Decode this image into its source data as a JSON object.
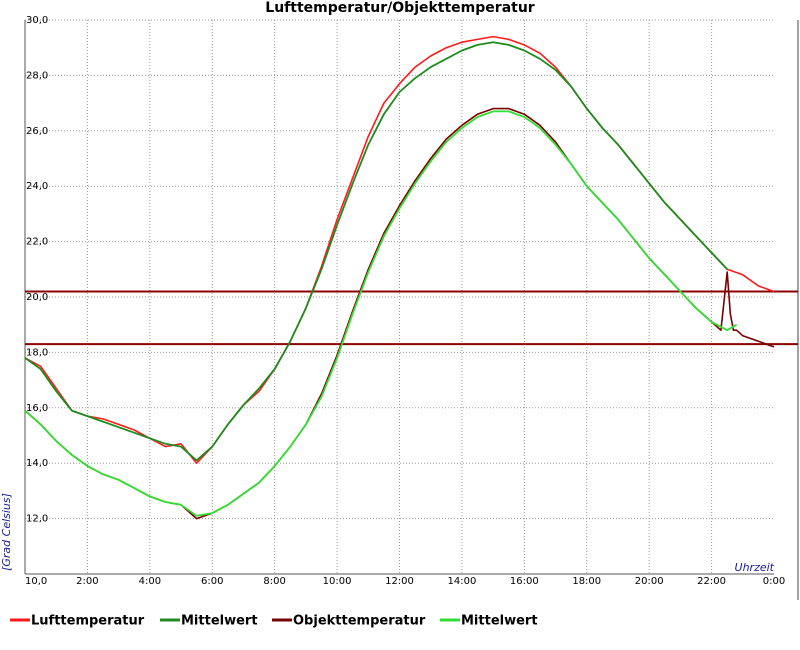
{
  "chart_data": {
    "type": "line",
    "title": "Lufttemperatur/Objekttemperatur",
    "xlabel": "Uhrzeit",
    "ylabel": "[Grad Celsius]",
    "xlim": [
      0,
      24
    ],
    "ylim": [
      10,
      30
    ],
    "x_ticks": [
      {
        "x": 0,
        "label": "10,0"
      },
      {
        "x": 2,
        "label": "2:00"
      },
      {
        "x": 4,
        "label": "4:00"
      },
      {
        "x": 6,
        "label": "6:00"
      },
      {
        "x": 8,
        "label": "8:00"
      },
      {
        "x": 10,
        "label": "10:00"
      },
      {
        "x": 12,
        "label": "12:00"
      },
      {
        "x": 14,
        "label": "14:00"
      },
      {
        "x": 16,
        "label": "16:00"
      },
      {
        "x": 18,
        "label": "18:00"
      },
      {
        "x": 20,
        "label": "20:00"
      },
      {
        "x": 22,
        "label": "22:00"
      },
      {
        "x": 24,
        "label": "0:00"
      }
    ],
    "y_ticks": [
      {
        "y": 12,
        "label": "12,0"
      },
      {
        "y": 14,
        "label": "14,0"
      },
      {
        "y": 16,
        "label": "16,0"
      },
      {
        "y": 18,
        "label": "18,0"
      },
      {
        "y": 20,
        "label": "20,0"
      },
      {
        "y": 22,
        "label": "22,0"
      },
      {
        "y": 24,
        "label": "24,0"
      },
      {
        "y": 26,
        "label": "26,0"
      },
      {
        "y": 28,
        "label": "28,0"
      },
      {
        "y": 30,
        "label": "30,0"
      }
    ],
    "grid": true,
    "legend_position": "bottom",
    "reference_lines": [
      {
        "y": 20.2,
        "color": "#8b0000"
      },
      {
        "y": 18.3,
        "color": "#8b0000"
      }
    ],
    "series": [
      {
        "name": "Lufttemperatur",
        "color": "#ff1a1a",
        "x": [
          0,
          0.5,
          1,
          1.5,
          2,
          2.5,
          3,
          3.5,
          4,
          4.5,
          5,
          5.5,
          6,
          6.5,
          7,
          7.5,
          8,
          8.5,
          9,
          9.5,
          10,
          10.5,
          11,
          11.5,
          12,
          12.5,
          13,
          13.5,
          14,
          14.5,
          15,
          15.5,
          16,
          16.5,
          17,
          17.5,
          18,
          18.5,
          19,
          19.5,
          20,
          20.5,
          21,
          21.5,
          22,
          22.5,
          23,
          23.5,
          24
        ],
        "y": [
          17.8,
          17.5,
          16.7,
          15.9,
          15.7,
          15.6,
          15.4,
          15.2,
          14.9,
          14.6,
          14.7,
          14.0,
          14.6,
          15.4,
          16.1,
          16.6,
          17.4,
          18.4,
          19.6,
          21.1,
          22.8,
          24.3,
          25.8,
          27.0,
          27.7,
          28.3,
          28.7,
          29.0,
          29.2,
          29.3,
          29.4,
          29.3,
          29.1,
          28.8,
          28.3,
          27.6,
          26.8,
          26.1,
          25.5,
          24.8,
          24.1,
          23.4,
          22.8,
          22.2,
          21.6,
          21.0,
          20.8,
          20.4,
          20.2
        ]
      },
      {
        "name": "Mittelwert",
        "color": "#1f8b1f",
        "x": [
          0,
          0.5,
          1,
          1.5,
          2,
          2.5,
          3,
          3.5,
          4,
          4.5,
          5,
          5.5,
          6,
          6.5,
          7,
          7.5,
          8,
          8.5,
          9,
          9.5,
          10,
          10.5,
          11,
          11.5,
          12,
          12.5,
          13,
          13.5,
          14,
          14.5,
          15,
          15.5,
          16,
          16.5,
          17,
          17.5,
          18,
          18.5,
          19,
          19.5,
          20,
          20.5,
          21,
          21.5,
          22,
          22.5
        ],
        "y": [
          17.8,
          17.4,
          16.6,
          15.9,
          15.7,
          15.5,
          15.3,
          15.1,
          14.9,
          14.7,
          14.6,
          14.1,
          14.6,
          15.4,
          16.1,
          16.7,
          17.4,
          18.4,
          19.6,
          21.0,
          22.6,
          24.1,
          25.5,
          26.6,
          27.4,
          27.9,
          28.3,
          28.6,
          28.9,
          29.1,
          29.2,
          29.1,
          28.9,
          28.6,
          28.2,
          27.6,
          26.8,
          26.1,
          25.5,
          24.8,
          24.1,
          23.4,
          22.8,
          22.2,
          21.6,
          21.0
        ]
      },
      {
        "name": "Objekttemperatur",
        "color": "#7a0000",
        "x": [
          0,
          0.5,
          1,
          1.5,
          2,
          2.5,
          3,
          3.5,
          4,
          4.5,
          5,
          5.5,
          6,
          6.5,
          7,
          7.5,
          8,
          8.5,
          9,
          9.5,
          10,
          10.5,
          11,
          11.5,
          12,
          12.5,
          13,
          13.5,
          14,
          14.5,
          15,
          15.5,
          16,
          16.5,
          17,
          17.5,
          18,
          18.5,
          19,
          19.5,
          20,
          20.5,
          21,
          21.5,
          22,
          22.3,
          22.5,
          22.6,
          22.7,
          22.8,
          23,
          23.5,
          24
        ],
        "y": [
          15.9,
          15.4,
          14.8,
          14.3,
          13.9,
          13.6,
          13.4,
          13.1,
          12.8,
          12.6,
          12.5,
          12.0,
          12.2,
          12.5,
          12.9,
          13.3,
          13.9,
          14.6,
          15.4,
          16.5,
          17.9,
          19.5,
          21.0,
          22.3,
          23.3,
          24.2,
          25.0,
          25.7,
          26.2,
          26.6,
          26.8,
          26.8,
          26.6,
          26.2,
          25.6,
          24.8,
          24.0,
          23.4,
          22.8,
          22.1,
          21.4,
          20.8,
          20.2,
          19.6,
          19.1,
          18.8,
          20.9,
          19.4,
          18.8,
          18.8,
          18.6,
          18.4,
          18.2
        ]
      },
      {
        "name": "Mittelwert",
        "color": "#33dd33",
        "x": [
          0,
          0.5,
          1,
          1.5,
          2,
          2.5,
          3,
          3.5,
          4,
          4.5,
          5,
          5.5,
          6,
          6.5,
          7,
          7.5,
          8,
          8.5,
          9,
          9.5,
          10,
          10.5,
          11,
          11.5,
          12,
          12.5,
          13,
          13.5,
          14,
          14.5,
          15,
          15.5,
          16,
          16.5,
          17,
          17.5,
          18,
          18.5,
          19,
          19.5,
          20,
          20.5,
          21,
          21.5,
          22,
          22.5,
          22.8
        ],
        "y": [
          15.9,
          15.4,
          14.8,
          14.3,
          13.9,
          13.6,
          13.4,
          13.1,
          12.8,
          12.6,
          12.5,
          12.1,
          12.2,
          12.5,
          12.9,
          13.3,
          13.9,
          14.6,
          15.4,
          16.4,
          17.8,
          19.4,
          20.9,
          22.2,
          23.2,
          24.1,
          24.9,
          25.6,
          26.1,
          26.5,
          26.7,
          26.7,
          26.5,
          26.1,
          25.5,
          24.8,
          24.0,
          23.4,
          22.8,
          22.1,
          21.4,
          20.8,
          20.2,
          19.6,
          19.1,
          18.8,
          19.0
        ]
      }
    ]
  }
}
